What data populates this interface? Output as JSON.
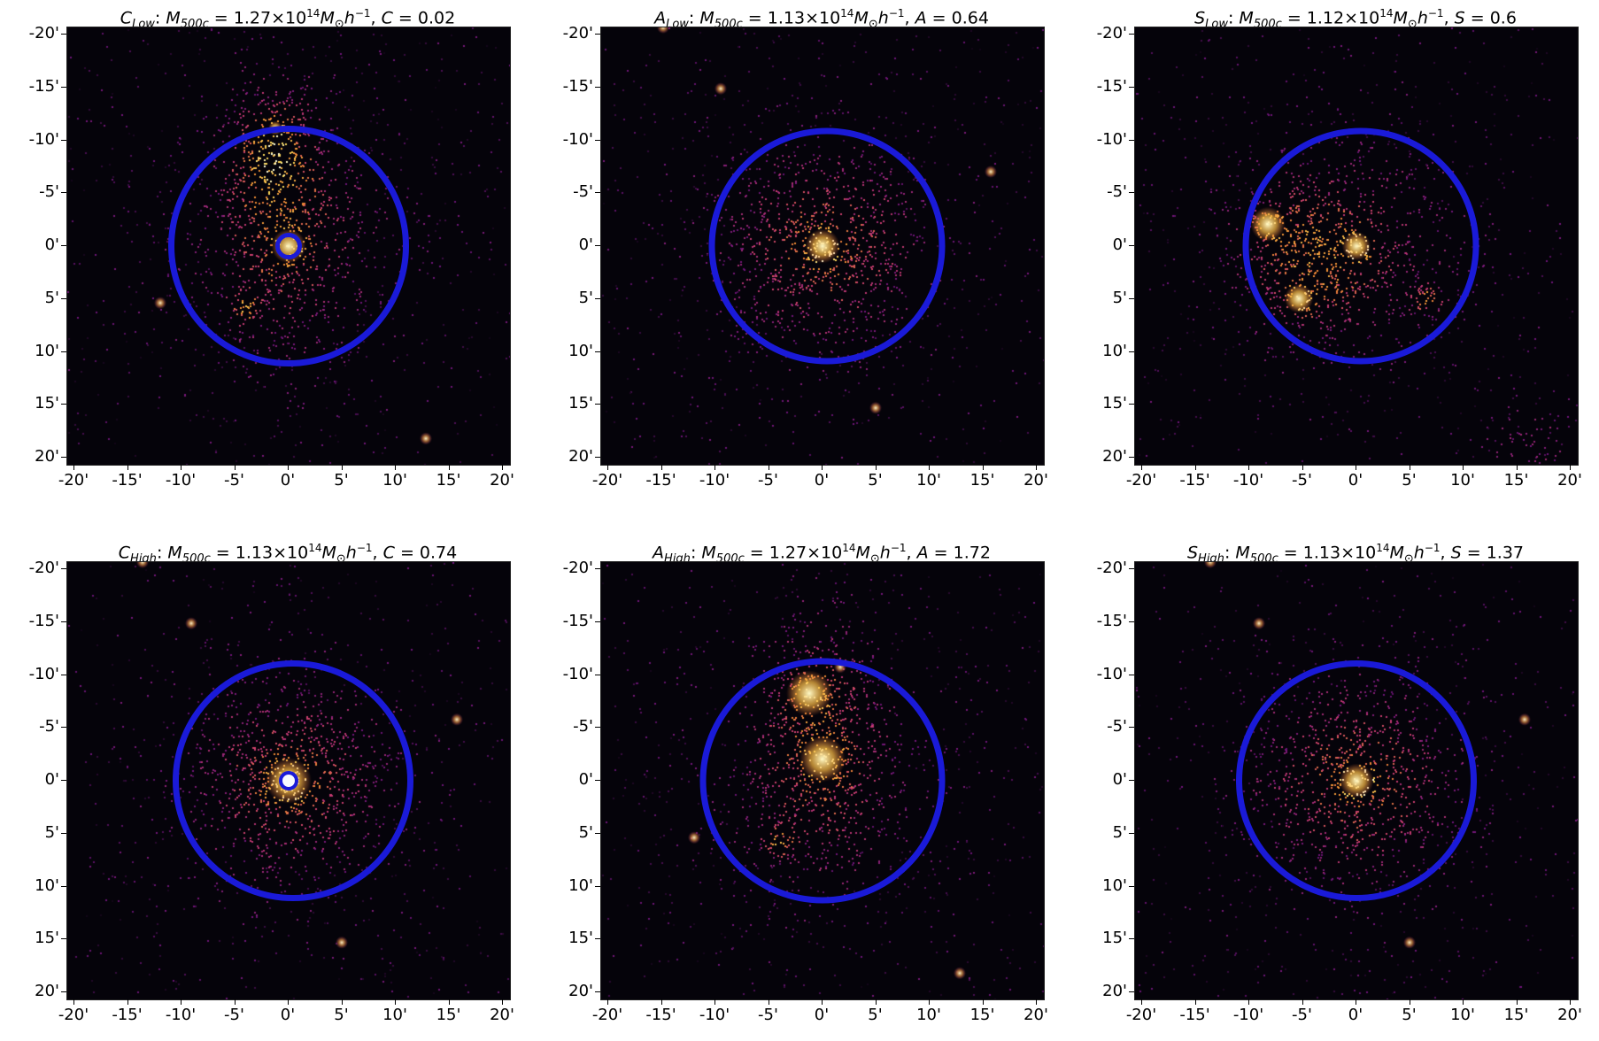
{
  "axes": {
    "y_ticks": [
      "-20'",
      "-15'",
      "-10'",
      "-5'",
      "0'",
      "5'",
      "10'",
      "15'",
      "20'"
    ],
    "x_ticks": [
      "-20'",
      "-15'",
      "-10'",
      "-5'",
      "0'",
      "5'",
      "10'",
      "15'",
      "20'"
    ]
  },
  "colors": {
    "ring": "#1a1ad8",
    "background": "#05030a"
  },
  "panels": [
    {
      "id": "c-low",
      "sym": "C",
      "sub": "Low",
      "mass": "1.27",
      "exp": "14",
      "param": "C",
      "value": "0.02"
    },
    {
      "id": "a-low",
      "sym": "A",
      "sub": "Low",
      "mass": "1.13",
      "exp": "14",
      "param": "A",
      "value": "0.64"
    },
    {
      "id": "s-low",
      "sym": "S",
      "sub": "Low",
      "mass": "1.12",
      "exp": "14",
      "param": "S",
      "value": "0.6"
    },
    {
      "id": "c-high",
      "sym": "C",
      "sub": "High",
      "mass": "1.13",
      "exp": "14",
      "param": "C",
      "value": "0.74"
    },
    {
      "id": "a-high",
      "sym": "A",
      "sub": "High",
      "mass": "1.27",
      "exp": "14",
      "param": "A",
      "value": "1.72"
    },
    {
      "id": "s-high",
      "sym": "S",
      "sub": "High",
      "mass": "1.13",
      "exp": "14",
      "param": "S",
      "value": "1.37"
    }
  ]
}
